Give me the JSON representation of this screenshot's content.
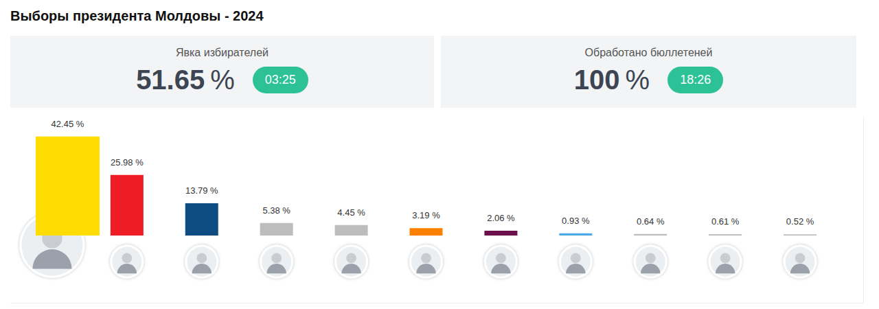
{
  "header": {
    "title": "Выборы президента Молдовы - 2024"
  },
  "panels": [
    {
      "label": "Явка избирателей",
      "value": 51.65,
      "unit": "%",
      "time": "03:25"
    },
    {
      "label": "Обработано бюллетеней",
      "value": 100,
      "unit": "%",
      "time": "18:26"
    }
  ],
  "chart_data": {
    "type": "bar",
    "categories": [
      null,
      null,
      null,
      null,
      null,
      null,
      null,
      null,
      null,
      null,
      null
    ],
    "values": [
      42.45,
      25.98,
      13.79,
      5.38,
      4.45,
      3.19,
      2.06,
      0.93,
      0.64,
      0.61,
      0.52
    ],
    "value_labels": [
      "42.45 %",
      "25.98 %",
      "13.79 %",
      "5.38 %",
      "4.45 %",
      "3.19 %",
      "2.06 %",
      "0.93 %",
      "0.64 %",
      "0.61 %",
      "0.52 %"
    ],
    "colors": [
      "#ffdd00",
      "#ee1c25",
      "#0f4c81",
      "#bdbdbd",
      "#bdbdbd",
      "#ff8000",
      "#6b0f4a",
      "#4daae8",
      "#bdbdbd",
      "#bdbdbd",
      "#bdbdbd"
    ],
    "ylim": [
      0,
      45
    ],
    "yticks": [
      0,
      45
    ],
    "grid": false,
    "data_labels": true,
    "tick_labels": false
  }
}
